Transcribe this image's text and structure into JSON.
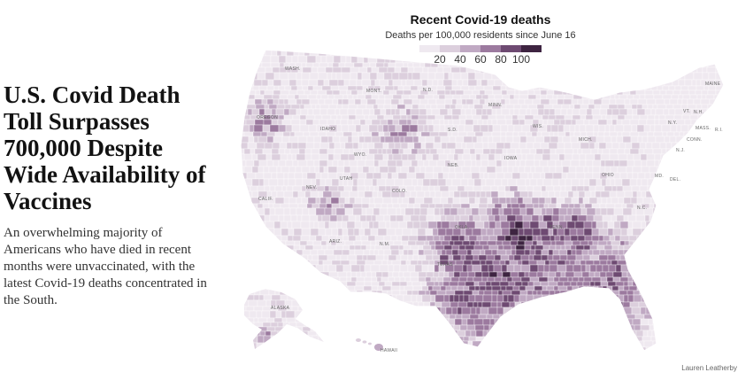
{
  "headline": "U.S. Covid Death Toll Surpasses 700,000 Despite Wide Availability of Vaccines",
  "summary": "An overwhelming majority of Americans who have died in recent months were unvaccinated, with the latest Covid-19 deaths concentrated in the South.",
  "map": {
    "title": "Recent Covid-19 deaths",
    "subtitle": "Deaths per 100,000 residents since June 16",
    "legend": {
      "ticks": [
        "20",
        "40",
        "60",
        "80",
        "100"
      ],
      "colors": [
        "#efe9f0",
        "#dccfdd",
        "#c0a9c3",
        "#9c7a9f",
        "#6e4a72",
        "#3e2441"
      ]
    },
    "state_labels": [
      "WASH.",
      "MONT.",
      "N.D.",
      "MINN.",
      "WIS.",
      "MICH.",
      "MAINE",
      "VT.",
      "N.H.",
      "N.Y.",
      "MASS.",
      "R.I.",
      "CONN.",
      "N.J.",
      "OHIO",
      "MD.",
      "DEL.",
      "S.D.",
      "NEB.",
      "IOWA",
      "OREGON",
      "IDAHO",
      "WYO.",
      "COLO.",
      "UTAH",
      "CALIF.",
      "NEV.",
      "ARIZ.",
      "N.M.",
      "OKLA.",
      "TEXAS",
      "TENN.",
      "N.C.",
      "ALASKA",
      "HAWAII"
    ],
    "credit": "Lauren Leatherby"
  }
}
